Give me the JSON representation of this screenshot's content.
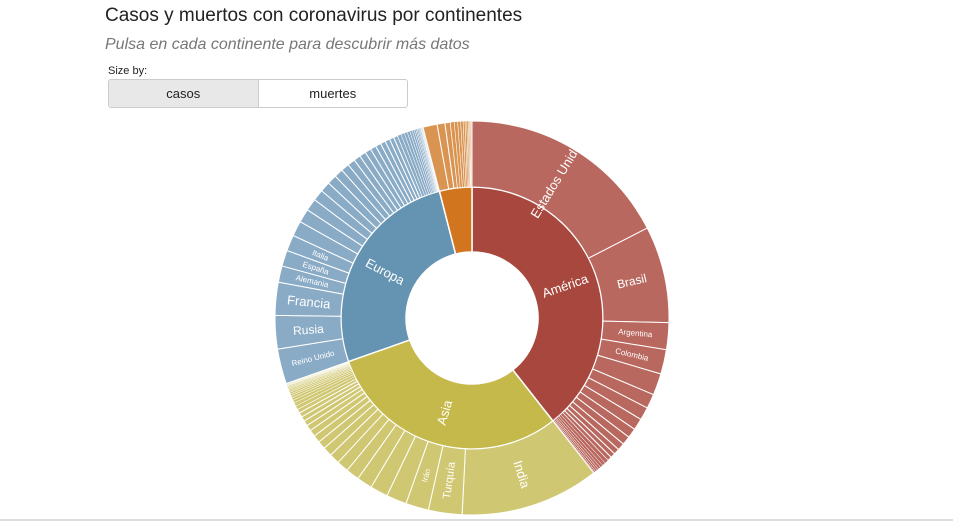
{
  "header": {
    "title": "Casos y muertos con coronavirus por continentes",
    "subtitle": "Pulsa en cada continente para descubrir más datos"
  },
  "controls": {
    "size_by_label": "Size by:",
    "options": [
      "casos",
      "muertes"
    ],
    "selected": "casos"
  },
  "colors": {
    "america": "#a8473d",
    "america_outer": "#b9685f",
    "europa": "#6593b2",
    "europa_outer": "#8aabc6",
    "asia": "#c5b94b",
    "asia_outer": "#d0c772",
    "africa": "#d1761f",
    "africa_outer": "#d99452",
    "stroke": "#ffffff"
  },
  "chart_data": {
    "type": "sunburst",
    "size_by": "casos",
    "continents": [
      {
        "name": "América",
        "share": 0.394,
        "countries": [
          {
            "name": "Estados Unidos",
            "share": 0.443
          },
          {
            "name": "Brasil",
            "share": 0.201
          },
          {
            "name": "Argentina",
            "share": 0.056
          },
          {
            "name": "Colombia",
            "share": 0.051
          },
          {
            "name": "",
            "share": 0.045
          },
          {
            "name": "",
            "share": 0.03
          },
          {
            "name": "",
            "share": 0.027
          },
          {
            "name": "",
            "share": 0.024
          },
          {
            "name": "",
            "share": 0.02
          },
          {
            "name": "",
            "share": 0.018
          },
          {
            "name": "",
            "share": 0.015
          },
          {
            "name": "",
            "share": 0.012
          },
          {
            "name": "",
            "share": 0.01
          },
          {
            "name": "",
            "share": 0.009
          },
          {
            "name": "",
            "share": 0.008
          },
          {
            "name": "",
            "share": 0.007
          },
          {
            "name": "",
            "share": 0.006
          },
          {
            "name": "",
            "share": 0.005
          },
          {
            "name": "",
            "share": 0.004
          },
          {
            "name": "",
            "share": 0.004
          },
          {
            "name": "",
            "share": 0.003
          },
          {
            "name": "",
            "share": 0.002
          }
        ]
      },
      {
        "name": "Asia",
        "share": 0.302,
        "countries": [
          {
            "name": "India",
            "share": 0.376
          },
          {
            "name": "Turquía",
            "share": 0.091
          },
          {
            "name": "Irán",
            "share": 0.062
          },
          {
            "name": "",
            "share": 0.055
          },
          {
            "name": "",
            "share": 0.048
          },
          {
            "name": "",
            "share": 0.042
          },
          {
            "name": "",
            "share": 0.036
          },
          {
            "name": "",
            "share": 0.032
          },
          {
            "name": "",
            "share": 0.028
          },
          {
            "name": "",
            "share": 0.025
          },
          {
            "name": "",
            "share": 0.022
          },
          {
            "name": "",
            "share": 0.02
          },
          {
            "name": "",
            "share": 0.018
          },
          {
            "name": "",
            "share": 0.016
          },
          {
            "name": "",
            "share": 0.014
          },
          {
            "name": "",
            "share": 0.013
          },
          {
            "name": "",
            "share": 0.012
          },
          {
            "name": "",
            "share": 0.011
          },
          {
            "name": "",
            "share": 0.01
          },
          {
            "name": "",
            "share": 0.009
          },
          {
            "name": "",
            "share": 0.008
          },
          {
            "name": "",
            "share": 0.007
          },
          {
            "name": "",
            "share": 0.006
          },
          {
            "name": "",
            "share": 0.005
          },
          {
            "name": "",
            "share": 0.005
          },
          {
            "name": "",
            "share": 0.004
          },
          {
            "name": "",
            "share": 0.004
          },
          {
            "name": "",
            "share": 0.003
          },
          {
            "name": "",
            "share": 0.003
          },
          {
            "name": "",
            "share": 0.003
          },
          {
            "name": "",
            "share": 0.002
          },
          {
            "name": "",
            "share": 0.002
          },
          {
            "name": "",
            "share": 0.002
          },
          {
            "name": "",
            "share": 0.002
          }
        ]
      },
      {
        "name": "Europa",
        "share": 0.264,
        "countries": [
          {
            "name": "Reino Unido",
            "share": 0.103
          },
          {
            "name": "Rusia",
            "share": 0.098
          },
          {
            "name": "Francia",
            "share": 0.097
          },
          {
            "name": "Alemania",
            "share": 0.048
          },
          {
            "name": "España",
            "share": 0.047
          },
          {
            "name": "Italia",
            "share": 0.047
          },
          {
            "name": "",
            "share": 0.045
          },
          {
            "name": "",
            "share": 0.04
          },
          {
            "name": "",
            "share": 0.036
          },
          {
            "name": "",
            "share": 0.033
          },
          {
            "name": "",
            "share": 0.03
          },
          {
            "name": "",
            "share": 0.028
          },
          {
            "name": "",
            "share": 0.026
          },
          {
            "name": "",
            "share": 0.024
          },
          {
            "name": "",
            "share": 0.022
          },
          {
            "name": "",
            "share": 0.02
          },
          {
            "name": "",
            "share": 0.019
          },
          {
            "name": "",
            "share": 0.018
          },
          {
            "name": "",
            "share": 0.017
          },
          {
            "name": "",
            "share": 0.016
          },
          {
            "name": "",
            "share": 0.015
          },
          {
            "name": "",
            "share": 0.014
          },
          {
            "name": "",
            "share": 0.013
          },
          {
            "name": "",
            "share": 0.012
          },
          {
            "name": "",
            "share": 0.011
          },
          {
            "name": "",
            "share": 0.01
          },
          {
            "name": "",
            "share": 0.009
          },
          {
            "name": "",
            "share": 0.008
          },
          {
            "name": "",
            "share": 0.007
          },
          {
            "name": "",
            "share": 0.006
          },
          {
            "name": "",
            "share": 0.005
          },
          {
            "name": "",
            "share": 0.004
          },
          {
            "name": "",
            "share": 0.004
          },
          {
            "name": "",
            "share": 0.003
          },
          {
            "name": "",
            "share": 0.003
          },
          {
            "name": "",
            "share": 0.002
          },
          {
            "name": "",
            "share": 0.002
          },
          {
            "name": "",
            "share": 0.002
          },
          {
            "name": "",
            "share": 0.002
          }
        ]
      },
      {
        "name": "",
        "share": 0.04,
        "countries": [
          {
            "name": "",
            "share": 0.29
          },
          {
            "name": "",
            "share": 0.16
          },
          {
            "name": "",
            "share": 0.11
          },
          {
            "name": "",
            "share": 0.08
          },
          {
            "name": "",
            "share": 0.07
          },
          {
            "name": "",
            "share": 0.06
          },
          {
            "name": "",
            "share": 0.05
          },
          {
            "name": "",
            "share": 0.04
          },
          {
            "name": "",
            "share": 0.035
          },
          {
            "name": "",
            "share": 0.03
          },
          {
            "name": "",
            "share": 0.025
          },
          {
            "name": "",
            "share": 0.02
          },
          {
            "name": "",
            "share": 0.015
          },
          {
            "name": "",
            "share": 0.015
          }
        ]
      }
    ],
    "remainder_share": 0.005
  }
}
